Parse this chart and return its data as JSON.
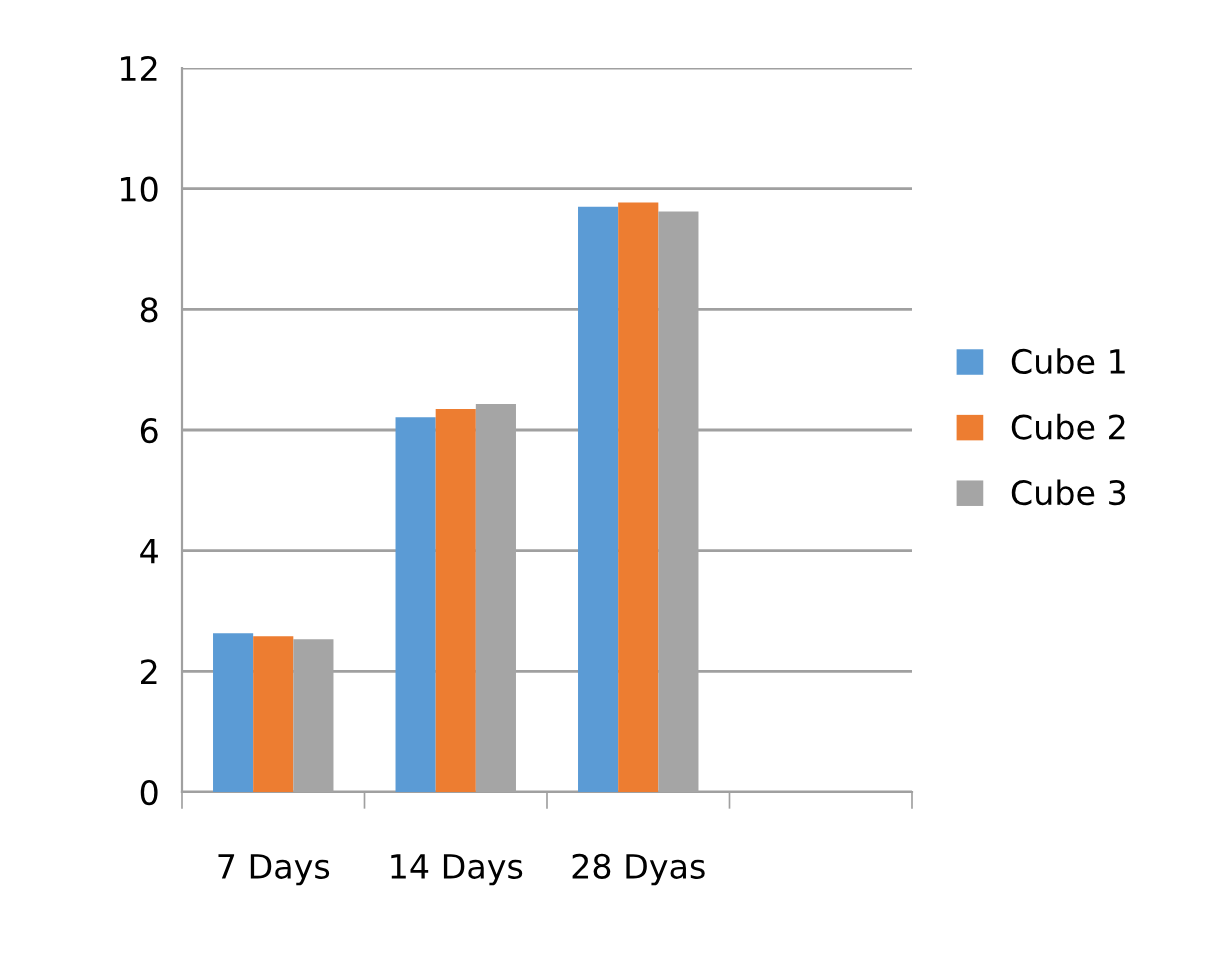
{
  "chart_data": {
    "type": "bar",
    "categories": [
      "7 Days",
      "14 Days",
      "28 Dyas",
      null
    ],
    "series": [
      {
        "name": "Cube 1",
        "color": "#5b9bd5",
        "values": [
          2.63,
          6.21,
          9.7,
          null
        ]
      },
      {
        "name": "Cube 2",
        "color": "#ed7d31",
        "values": [
          2.58,
          6.35,
          9.77,
          null
        ]
      },
      {
        "name": "Cube 3",
        "color": "#a5a5a5",
        "values": [
          2.53,
          6.43,
          9.62,
          null
        ]
      }
    ],
    "ylim": [
      0,
      12
    ],
    "yticks": [
      0,
      2,
      4,
      6,
      8,
      10,
      12
    ],
    "grid": "y",
    "legend": "right"
  }
}
